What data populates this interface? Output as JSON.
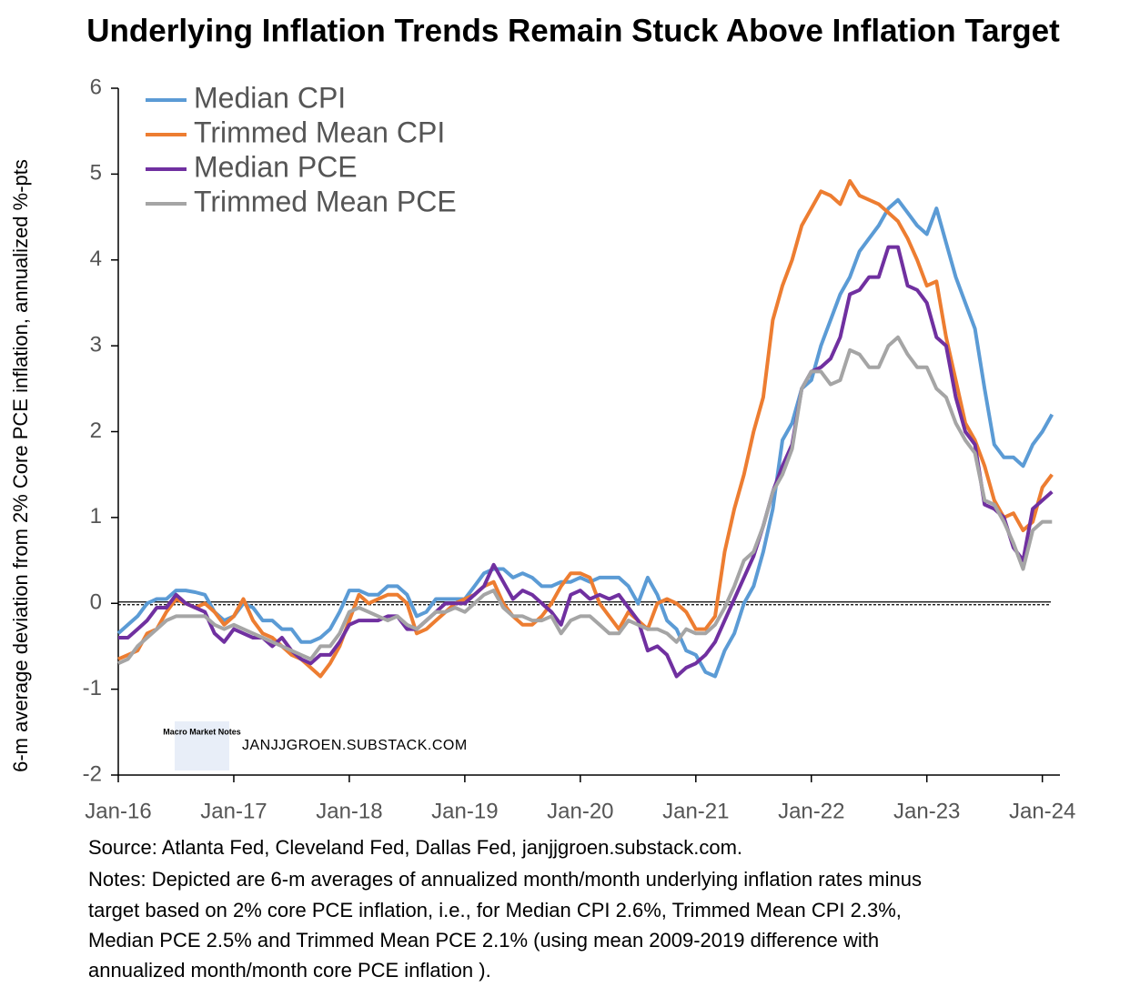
{
  "chart_data": {
    "type": "line",
    "title": "Underlying Inflation Trends Remain Stuck Above Inflation Target",
    "y_label": "6-m average deviation from 2% Core PCE inflation, annualized %-pts",
    "watermark": "JANJJGROEN.SUBSTACK.COM",
    "logo_text": "Macro Market Notes",
    "source": "Source: Atlanta Fed, Cleveland Fed, Dallas Fed, janjjgroen.substack.com.",
    "notes": [
      "Notes: Depicted are 6-m averages of annualized month/month underlying inflation rates minus",
      "target based on 2% core PCE inflation, i.e., for Median CPI 2.6%, Trimmed Mean CPI 2.3%,",
      "Median PCE 2.5% and Trimmed Mean PCE 2.1% (using mean 2009-2019 difference with",
      "annualized month/month core PCE inflation )."
    ],
    "categories": [
      "Jan-16",
      null,
      null,
      null,
      null,
      null,
      null,
      null,
      null,
      null,
      null,
      null,
      "Jan-17",
      null,
      null,
      null,
      null,
      null,
      null,
      null,
      null,
      null,
      null,
      null,
      "Jan-18",
      null,
      null,
      null,
      null,
      null,
      null,
      null,
      null,
      null,
      null,
      null,
      "Jan-19",
      null,
      null,
      null,
      null,
      null,
      null,
      null,
      null,
      null,
      null,
      null,
      "Jan-20",
      null,
      null,
      null,
      null,
      null,
      null,
      null,
      null,
      null,
      null,
      null,
      "Jan-21",
      null,
      null,
      null,
      null,
      null,
      null,
      null,
      null,
      null,
      null,
      null,
      "Jan-22",
      null,
      null,
      null,
      null,
      null,
      null,
      null,
      null,
      null,
      null,
      null,
      "Jan-23",
      null,
      null,
      null,
      null,
      null,
      null,
      null,
      null,
      null,
      null,
      null,
      "Jan-24",
      null
    ],
    "ylim": [
      -2,
      6
    ],
    "yticks": [
      -2,
      -1,
      0,
      1,
      2,
      3,
      4,
      5,
      6
    ],
    "grid": false,
    "legend": "upper left",
    "series": [
      {
        "name": "Median CPI",
        "color": "#5b9bd5",
        "values": [
          -0.35,
          -0.25,
          -0.15,
          0.0,
          0.05,
          0.05,
          0.15,
          0.15,
          0.13,
          0.1,
          -0.1,
          -0.2,
          -0.15,
          0.0,
          -0.05,
          -0.2,
          -0.2,
          -0.3,
          -0.3,
          -0.45,
          -0.45,
          -0.4,
          -0.3,
          -0.1,
          0.15,
          0.15,
          0.1,
          0.1,
          0.2,
          0.2,
          0.1,
          -0.15,
          -0.1,
          0.05,
          0.05,
          0.05,
          0.05,
          0.2,
          0.35,
          0.4,
          0.4,
          0.3,
          0.35,
          0.3,
          0.2,
          0.2,
          0.25,
          0.25,
          0.3,
          0.25,
          0.3,
          0.3,
          0.3,
          0.2,
          0.0,
          0.3,
          0.1,
          -0.2,
          -0.3,
          -0.55,
          -0.6,
          -0.8,
          -0.85,
          -0.55,
          -0.35,
          0.0,
          0.2,
          0.6,
          1.1,
          1.9,
          2.1,
          2.5,
          2.6,
          3.0,
          3.3,
          3.6,
          3.8,
          4.1,
          4.25,
          4.4,
          4.6,
          4.7,
          4.55,
          4.4,
          4.3,
          4.6,
          4.2,
          3.8,
          3.5,
          3.2,
          2.5,
          1.85,
          1.7,
          1.7,
          1.6,
          1.85,
          2.0,
          2.2
        ]
      },
      {
        "name": "Trimmed Mean CPI",
        "color": "#ed7d31",
        "values": [
          -0.65,
          -0.6,
          -0.55,
          -0.35,
          -0.3,
          -0.1,
          0.05,
          0.0,
          -0.05,
          0.0,
          -0.1,
          -0.25,
          -0.15,
          0.05,
          -0.2,
          -0.35,
          -0.4,
          -0.5,
          -0.6,
          -0.65,
          -0.75,
          -0.85,
          -0.7,
          -0.5,
          -0.2,
          0.1,
          0.0,
          0.05,
          0.1,
          0.1,
          0.0,
          -0.35,
          -0.3,
          -0.2,
          -0.1,
          0.0,
          0.05,
          0.1,
          0.2,
          0.25,
          0.0,
          -0.15,
          -0.25,
          -0.25,
          -0.15,
          0.0,
          0.2,
          0.35,
          0.35,
          0.3,
          0.0,
          -0.15,
          -0.3,
          -0.1,
          -0.2,
          -0.3,
          0.0,
          0.05,
          0.0,
          -0.1,
          -0.3,
          -0.3,
          -0.15,
          0.6,
          1.1,
          1.5,
          2.0,
          2.4,
          3.3,
          3.7,
          4.0,
          4.4,
          4.6,
          4.8,
          4.75,
          4.65,
          4.92,
          4.75,
          4.7,
          4.65,
          4.55,
          4.45,
          4.25,
          4.0,
          3.7,
          3.75,
          3.1,
          2.6,
          2.1,
          1.9,
          1.6,
          1.2,
          1.0,
          1.05,
          0.85,
          0.95,
          1.35,
          1.5
        ]
      },
      {
        "name": "Median PCE",
        "color": "#7030a0",
        "values": [
          -0.4,
          -0.4,
          -0.3,
          -0.2,
          -0.05,
          -0.05,
          0.1,
          0.0,
          -0.05,
          -0.1,
          -0.35,
          -0.45,
          -0.3,
          -0.35,
          -0.4,
          -0.4,
          -0.5,
          -0.4,
          -0.55,
          -0.65,
          -0.7,
          -0.6,
          -0.6,
          -0.45,
          -0.25,
          -0.2,
          -0.2,
          -0.2,
          -0.15,
          -0.15,
          -0.3,
          -0.3,
          -0.2,
          -0.1,
          0.0,
          0.0,
          0.0,
          0.1,
          0.2,
          0.45,
          0.25,
          0.05,
          0.15,
          0.1,
          0.0,
          -0.1,
          -0.25,
          0.1,
          0.15,
          0.05,
          0.1,
          0.05,
          0.1,
          -0.05,
          -0.2,
          -0.55,
          -0.5,
          -0.6,
          -0.85,
          -0.75,
          -0.7,
          -0.6,
          -0.45,
          -0.2,
          0.05,
          0.3,
          0.55,
          0.9,
          1.3,
          1.6,
          1.85,
          2.5,
          2.7,
          2.75,
          2.85,
          3.1,
          3.6,
          3.65,
          3.8,
          3.8,
          4.15,
          4.15,
          3.7,
          3.65,
          3.5,
          3.1,
          3.0,
          2.4,
          2.0,
          1.85,
          1.15,
          1.1,
          1.0,
          0.65,
          0.5,
          1.1,
          1.2,
          1.3
        ]
      },
      {
        "name": "Trimmed Mean PCE",
        "color": "#a5a5a5",
        "values": [
          -0.7,
          -0.65,
          -0.5,
          -0.4,
          -0.3,
          -0.2,
          -0.15,
          -0.15,
          -0.15,
          -0.15,
          -0.25,
          -0.3,
          -0.25,
          -0.3,
          -0.35,
          -0.4,
          -0.45,
          -0.5,
          -0.55,
          -0.6,
          -0.65,
          -0.5,
          -0.5,
          -0.35,
          -0.1,
          -0.05,
          -0.1,
          -0.15,
          -0.2,
          -0.15,
          -0.25,
          -0.3,
          -0.2,
          -0.1,
          -0.1,
          -0.05,
          -0.1,
          0.0,
          0.1,
          0.15,
          -0.05,
          -0.15,
          -0.15,
          -0.2,
          -0.2,
          -0.15,
          -0.35,
          -0.2,
          -0.15,
          -0.15,
          -0.25,
          -0.35,
          -0.35,
          -0.2,
          -0.25,
          -0.3,
          -0.3,
          -0.35,
          -0.45,
          -0.3,
          -0.35,
          -0.35,
          -0.25,
          -0.05,
          0.2,
          0.5,
          0.6,
          0.9,
          1.3,
          1.5,
          1.8,
          2.5,
          2.7,
          2.7,
          2.55,
          2.6,
          2.95,
          2.9,
          2.75,
          2.75,
          3.0,
          3.1,
          2.9,
          2.75,
          2.75,
          2.5,
          2.4,
          2.1,
          1.9,
          1.75,
          1.2,
          1.15,
          0.95,
          0.7,
          0.4,
          0.85,
          0.95,
          0.95
        ]
      }
    ]
  }
}
